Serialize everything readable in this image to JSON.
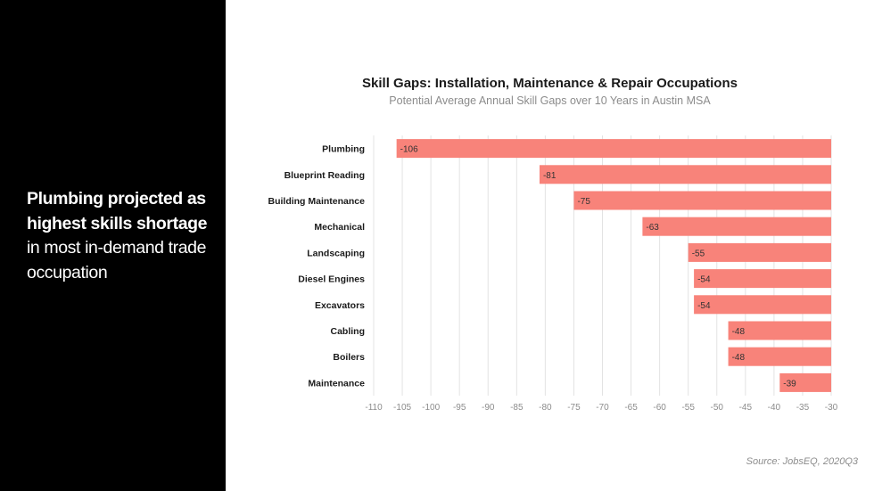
{
  "headline": {
    "part1": "Plumbing projected as highest skills shortage",
    "part2": " in most in-demand trade occupation"
  },
  "source": "Source: JobsEQ, 2020Q3",
  "colors": {
    "bar": "#f8837a",
    "grid": "#e3e3e3",
    "panel": "#000000"
  },
  "chart_data": {
    "type": "bar",
    "orientation": "horizontal",
    "title": "Skill Gaps: Installation, Maintenance & Repair Occupations",
    "subtitle": "Potential Average Annual Skill Gaps over 10 Years in Austin MSA",
    "categories": [
      "Plumbing",
      "Blueprint Reading",
      "Building Maintenance",
      "Mechanical",
      "Landscaping",
      "Diesel Engines",
      "Excavators",
      "Cabling",
      "Boilers",
      "Maintenance"
    ],
    "values": [
      -106,
      -81,
      -75,
      -63,
      -55,
      -54,
      -54,
      -48,
      -48,
      -39
    ],
    "data_labels": [
      "-106",
      "-81",
      "-75",
      "-63",
      "-55",
      "-54",
      "-54",
      "-48",
      "-48",
      "-39"
    ],
    "xlim": [
      -110,
      -30
    ],
    "xticks": [
      -110,
      -105,
      -100,
      -95,
      -90,
      -85,
      -80,
      -75,
      -70,
      -65,
      -60,
      -55,
      -50,
      -45,
      -40,
      -35,
      -30
    ],
    "grid": "vertical",
    "legend": "none"
  }
}
